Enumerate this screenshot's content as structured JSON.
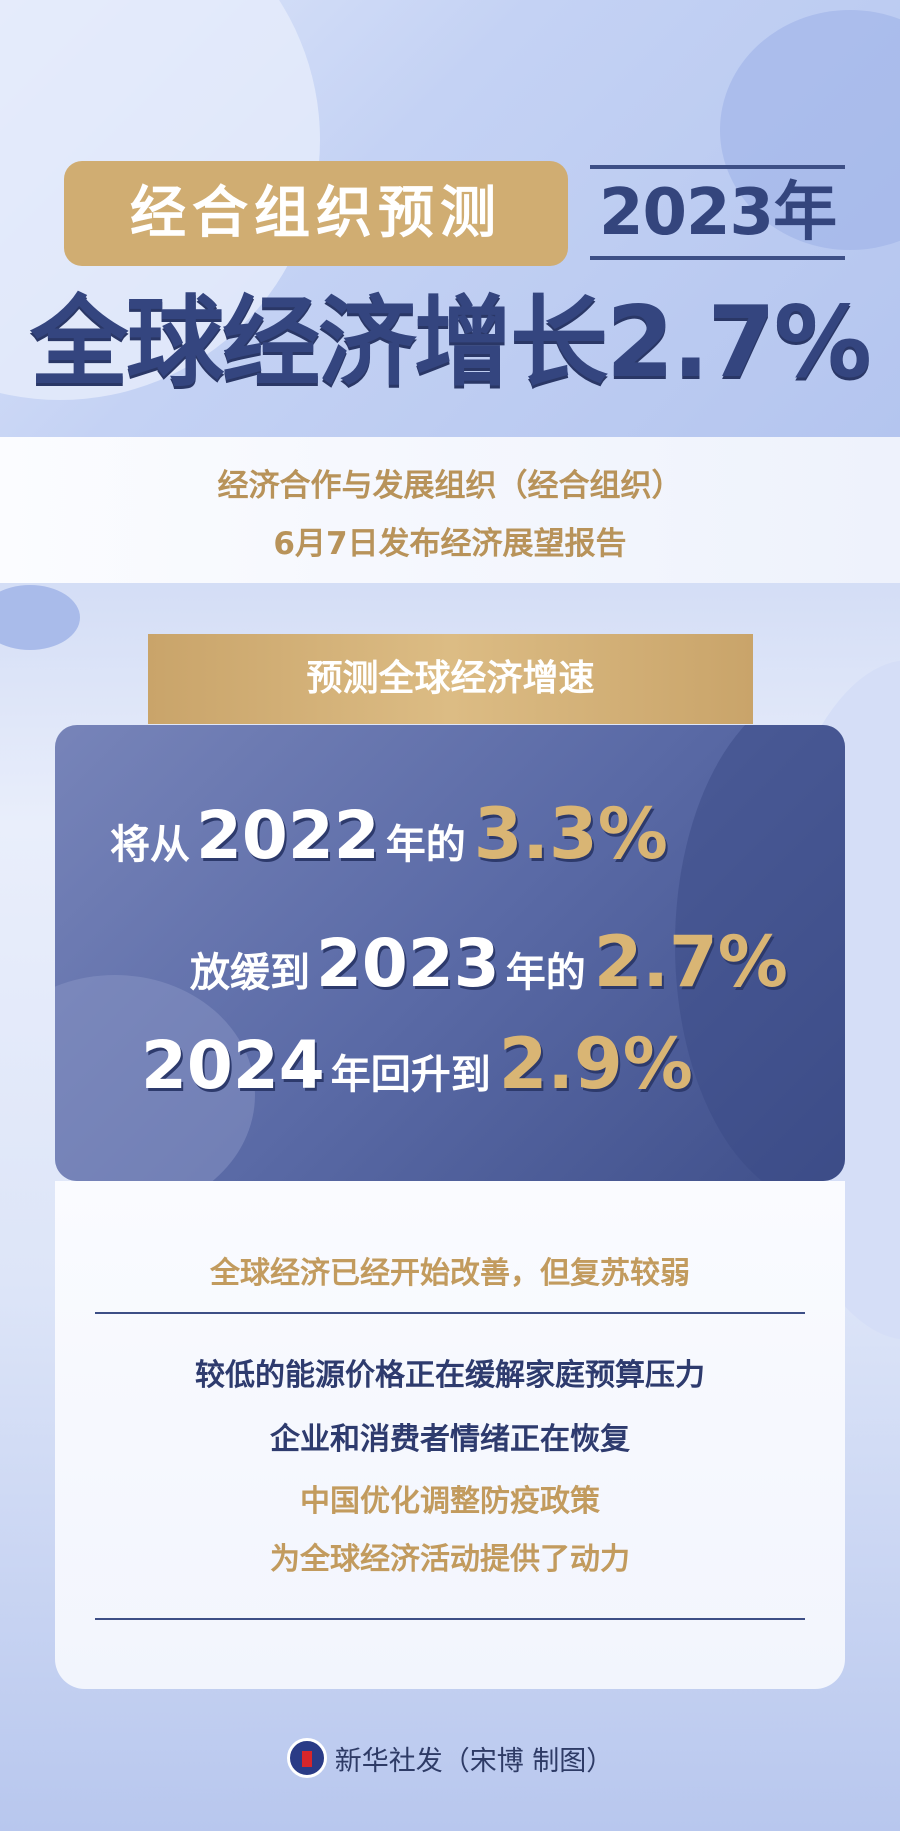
{
  "header": {
    "org_label": "经合组织预测",
    "year_label": "2023年",
    "headline": "全球经济增长2.7%"
  },
  "intro": {
    "line1": "经济合作与发展组织（经合组织）",
    "line2": "6月7日发布经济展望报告"
  },
  "forecast": {
    "title": "预测全球经济增速",
    "rows": [
      {
        "pre": "将从",
        "year": "2022",
        "mid": "年的",
        "value": "3.3%"
      },
      {
        "pre": "放缓到",
        "year": "2023",
        "mid": "年的",
        "value": "2.7%"
      },
      {
        "pre": "",
        "year": "2024",
        "mid": "年回升到",
        "value": "2.9%"
      }
    ]
  },
  "notes": {
    "summary": "全球经济已经开始改善，但复苏较弱",
    "points": [
      "较低的能源价格正在缓解家庭预算压力",
      "企业和消费者情绪正在恢复",
      "中国优化调整防疫政策",
      "为全球经济活动提供了动力"
    ]
  },
  "footer": {
    "credit": "新华社发（宋博 制图）"
  },
  "colors": {
    "gold": "#c9a46a",
    "navy": "#34457d",
    "highlight": "#d9b574"
  }
}
